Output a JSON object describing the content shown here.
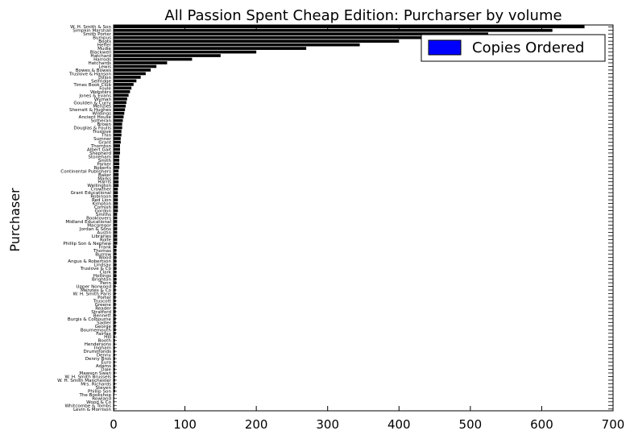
{
  "chart_data": {
    "type": "bar",
    "orientation": "horizontal",
    "title": "All Passion Spent Cheap Edition: Purcharser by volume",
    "xlabel": "",
    "ylabel": "Purchaser",
    "xlim": [
      0,
      700
    ],
    "x_ticks": [
      0,
      100,
      200,
      300,
      400,
      500,
      600,
      700
    ],
    "grid": false,
    "legend": {
      "placement": "top-right",
      "entries": [
        {
          "name": "Copies Ordered",
          "color": "#0000ff"
        }
      ]
    },
    "bar_color": "#000000",
    "categories": [
      "W. H. Smith & Son",
      "Simpkin Marshall",
      "Smith Porter",
      "Bumpus",
      "Boots",
      "Heffer",
      "Mudie",
      "Blackwell",
      "Hatchard",
      "Harrods",
      "Hatchards",
      "Lewis",
      "Bowes & Bowes",
      "Truslove & Hanson",
      "Dillon",
      "Selfridge",
      "Times Book Club",
      "Foyle",
      "Websters",
      "Jones & Evans",
      "Wyman",
      "Goulden & Curry",
      "Menzies",
      "Sherratt & Hughes",
      "Wildings",
      "Ancient House",
      "Sotheran",
      "Brown",
      "Douglas & Foulis",
      "Truslove",
      "Thin",
      "Sumner",
      "Grant",
      "Thornton",
      "Albert Gait",
      "Shepherd",
      "Stoneham",
      "Smith",
      "Parker",
      "Roberts",
      "Continental Publishers",
      "Baker",
      "Marks",
      "Harris",
      "Wellington",
      "Crowther",
      "Grant Educational",
      "Robinson",
      "Red Lion",
      "Kimpton",
      "Cornish",
      "Gordon",
      "Smiths",
      "Booklovers",
      "Midland Educational",
      "Macgregor",
      "Jordan & Sons",
      "Austin",
      "Libraries",
      "Rolfe",
      "Phillip Son & Nephew",
      "Frank",
      "Thomas",
      "Burrow",
      "Wood",
      "Angus & Robertson",
      "Lindsay",
      "Truslove & Co",
      "Clark",
      "Hollings",
      "Brighton",
      "Penn",
      "Upper Norwood",
      "Menzies & Co",
      "W. H. Smith Paris",
      "Porter",
      "Truscott",
      "Greene",
      "Reader",
      "Stratford",
      "Bennett",
      "Burgis & Colbourne",
      "Sadler",
      "George",
      "Bournemouth",
      "Fairfax",
      "Hill",
      "Booth",
      "Hendersons",
      "Ingham",
      "Drummonds",
      "Denny",
      "Denny Bros",
      "Euro",
      "Adams",
      "Dale",
      "Mawson Swan",
      "W. H. Smith Brussels",
      "W. H. Smith Manchester",
      "Mrs. Richards",
      "Steven",
      "Phillip Son",
      "The Bookshop",
      "Rowland",
      "Wood & Co",
      "Whitcombe & Tombs",
      "Levin & Morrison"
    ],
    "values": [
      660,
      615,
      525,
      455,
      400,
      345,
      270,
      200,
      150,
      110,
      75,
      60,
      52,
      45,
      38,
      32,
      28,
      25,
      23,
      21,
      19,
      18,
      17,
      16,
      15,
      14,
      13,
      12,
      12,
      11,
      11,
      10,
      10,
      9,
      9,
      9,
      8,
      8,
      8,
      8,
      7,
      7,
      7,
      7,
      7,
      6,
      6,
      6,
      6,
      6,
      6,
      6,
      5,
      5,
      5,
      5,
      5,
      5,
      5,
      5,
      5,
      4,
      4,
      4,
      4,
      4,
      4,
      4,
      4,
      4,
      4,
      4,
      3,
      3,
      3,
      3,
      3,
      3,
      3,
      3,
      3,
      3,
      3,
      3,
      3,
      3,
      2,
      2,
      2,
      2,
      2,
      2,
      2,
      2,
      2,
      2,
      2,
      2,
      2,
      2,
      2,
      2,
      1,
      1,
      1,
      1,
      1
    ]
  }
}
